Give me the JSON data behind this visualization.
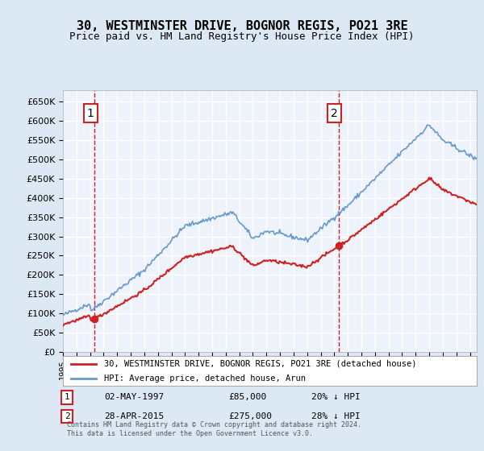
{
  "title": "30, WESTMINSTER DRIVE, BOGNOR REGIS, PO21 3RE",
  "subtitle": "Price paid vs. HM Land Registry's House Price Index (HPI)",
  "legend_line1": "30, WESTMINSTER DRIVE, BOGNOR REGIS, PO21 3RE (detached house)",
  "legend_line2": "HPI: Average price, detached house, Arun",
  "annotation1_label": "1",
  "annotation1_date": "02-MAY-1997",
  "annotation1_price": "£85,000",
  "annotation1_hpi": "20% ↓ HPI",
  "annotation2_label": "2",
  "annotation2_date": "28-APR-2015",
  "annotation2_price": "£275,000",
  "annotation2_hpi": "28% ↓ HPI",
  "footnote": "Contains HM Land Registry data © Crown copyright and database right 2024.\nThis data is licensed under the Open Government Licence v3.0.",
  "sale1_year": 1997.33,
  "sale1_price": 85000,
  "sale2_year": 2015.32,
  "sale2_price": 275000,
  "ylim": [
    0,
    680000
  ],
  "xlim_start": 1995,
  "xlim_end": 2025.5,
  "hpi_color": "#6699cc",
  "property_color": "#cc2222",
  "vline_color": "#cc2222",
  "background_color": "#dde8f5",
  "plot_background": "#eef3fb",
  "grid_color": "#ffffff",
  "annotation_box_color": "#ffffff",
  "annotation_box_edge": "#cc2222"
}
